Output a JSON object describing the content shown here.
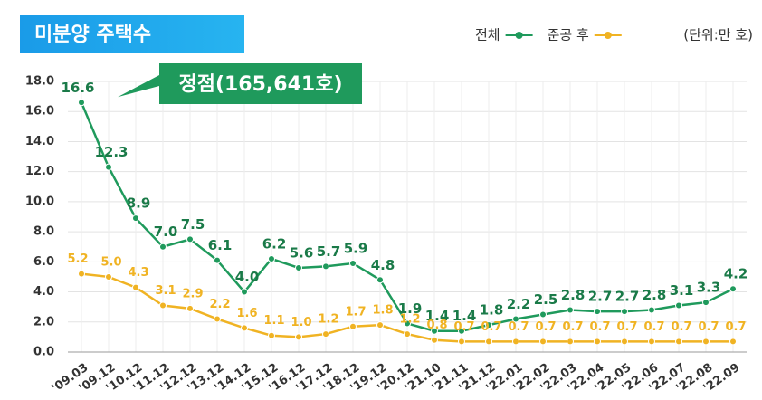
{
  "chart_data": {
    "type": "line",
    "title": "미분양 주택수",
    "annotation": "정점(165,641호)",
    "unit_label": "(단위:만 호)",
    "categories": [
      "'09.03",
      "'09.12",
      "'10.12",
      "'11.12",
      "'12.12",
      "'13.12",
      "'14.12",
      "'15.12",
      "'16.12",
      "'17.12",
      "'18.12",
      "'19.12",
      "'20.12",
      "'21.10",
      "'21.11",
      "'21.12",
      "'22.01",
      "'22.02",
      "'22.03",
      "'22.04",
      "'22.05",
      "'22.06",
      "'22.07",
      "'22.08",
      "'22.09"
    ],
    "series": [
      {
        "name": "전체",
        "color": "#1f9a5c",
        "values": [
          16.6,
          12.3,
          8.9,
          7.0,
          7.5,
          6.1,
          4.0,
          6.2,
          5.6,
          5.7,
          5.9,
          4.8,
          1.9,
          1.4,
          1.4,
          1.8,
          2.2,
          2.5,
          2.8,
          2.7,
          2.7,
          2.8,
          3.1,
          3.3,
          4.2
        ],
        "value_labels": [
          "16.6",
          "12.3",
          "8.9",
          "7.0",
          "7.5",
          "6.1",
          "4.0",
          "6.2",
          "5.6",
          "5.7",
          "5.9",
          "4.8",
          "1.9",
          "1.4",
          "1.4",
          "1.8",
          "2.2",
          "2.5",
          "2.8",
          "2.7",
          "2.7",
          "2.8",
          "3.1",
          "3.3",
          "4.2"
        ]
      },
      {
        "name": "준공 후",
        "color": "#f0b323",
        "values": [
          5.2,
          5.0,
          4.3,
          3.1,
          2.9,
          2.2,
          1.6,
          1.1,
          1.0,
          1.2,
          1.7,
          1.8,
          1.2,
          0.8,
          0.7,
          0.7,
          0.7,
          0.7,
          0.7,
          0.7,
          0.7,
          0.7,
          0.7,
          0.7,
          0.7
        ],
        "value_labels": [
          "5.2",
          "5.0",
          "4.3",
          "3.1",
          "2.9",
          "2.2",
          "1.6",
          "1.1",
          "1.0",
          "1.2",
          "1.7",
          "1.8",
          "1.2",
          "0.8",
          "0.7",
          "0.7",
          "0.7",
          "0.7",
          "0.7",
          "0.7",
          "0.7",
          "0.7",
          "0.7",
          "0.7",
          "0.7"
        ]
      }
    ],
    "ylim": [
      0,
      18
    ],
    "yticks": [
      {
        "value": 0,
        "label": "0.0"
      },
      {
        "value": 2,
        "label": "2.0"
      },
      {
        "value": 4,
        "label": "4.0"
      },
      {
        "value": 6,
        "label": "6.0"
      },
      {
        "value": 8,
        "label": "8.0"
      },
      {
        "value": 10,
        "label": "10.0"
      },
      {
        "value": 12,
        "label": "12.0"
      },
      {
        "value": 14,
        "label": "14.0"
      },
      {
        "value": 16,
        "label": "16.0"
      },
      {
        "value": 18,
        "label": "18.0"
      }
    ],
    "grid": true
  }
}
